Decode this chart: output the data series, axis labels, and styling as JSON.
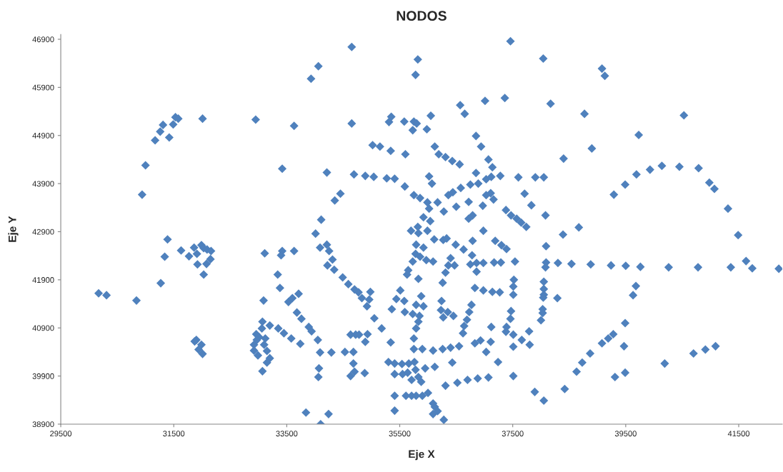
{
  "chart_data": {
    "type": "scatter",
    "title": "NODOS",
    "xlabel": "Eje X",
    "ylabel": "Eje Y",
    "xlim": [
      29500,
      42270
    ],
    "ylim": [
      38900,
      47000
    ],
    "xticks": [
      29500,
      31500,
      33500,
      35500,
      37500,
      39500,
      41500
    ],
    "yticks": [
      38900,
      39900,
      40900,
      41900,
      42900,
      43900,
      44900,
      45900,
      46900
    ],
    "grid": false,
    "marker": "diamond",
    "series": [
      {
        "color": "#4f81bd",
        "x": [
          30940,
          31000,
          31170,
          31260,
          31310,
          31420,
          31490,
          31530,
          31580,
          32010,
          32950,
          33630,
          33420,
          31390,
          31340,
          31630,
          31860,
          31770,
          31910,
          31990,
          32030,
          32090,
          32160,
          32150,
          31920,
          32080,
          32030,
          31270,
          30170,
          30310,
          30840,
          31900,
          31870,
          31990,
          31940,
          32010,
          33110,
          33420,
          33400,
          33630,
          33340,
          33380,
          33090,
          33530,
          33600,
          33710,
          33680,
          33760,
          33070,
          33200,
          33350,
          33450,
          33580,
          33740,
          33060,
          32960,
          33010,
          33120,
          32970,
          32920,
          33100,
          33150,
          32920,
          32990,
          33200,
          33150,
          33070,
          34650,
          34060,
          33930,
          35820,
          35780,
          37460,
          38040,
          34650,
          36570,
          36650,
          37010,
          37360,
          35350,
          35310,
          35580,
          35750,
          35800,
          35730,
          36050,
          35980,
          36850,
          36940,
          35020,
          35150,
          35340,
          35600,
          36120,
          36190,
          36310,
          36430,
          36560,
          37070,
          37140,
          34210,
          34690,
          34890,
          35040,
          35270,
          35410,
          36020,
          36070,
          35590,
          36850,
          36750,
          36890,
          36580,
          36440,
          36360,
          36170,
          36280,
          36500,
          36720,
          36790,
          36720,
          36970,
          37030,
          37110,
          37160,
          37030,
          37120,
          37280,
          37600,
          37900,
          37710,
          37830,
          37380,
          37470,
          37570,
          37650,
          37740,
          36980,
          34450,
          34350,
          34110,
          34010,
          35750,
          35860,
          35990,
          36020,
          35920,
          36040,
          35820,
          35700,
          35990,
          39080,
          39130,
          38170,
          38770,
          40530,
          39730,
          38900,
          38400,
          38050,
          39290,
          39490,
          39690,
          39930,
          40140,
          40450,
          40790,
          40980,
          41070,
          41310,
          41490,
          38080,
          38670,
          38390,
          38090,
          38090,
          38080,
          38300,
          38540,
          38880,
          39240,
          39500,
          39760,
          40260,
          40780,
          41360,
          41630,
          41740,
          42210,
          38050,
          38050,
          38050,
          38040,
          38290,
          39680,
          39630,
          38030,
          38030,
          38000,
          39490,
          39280,
          39190,
          39080,
          39470,
          38870,
          38730,
          38630,
          38420,
          38050,
          39310,
          39490,
          40190,
          40700,
          40910,
          41090,
          34090,
          34210,
          34250,
          34310,
          34220,
          34340,
          34490,
          34590,
          34700,
          34770,
          34830,
          34980,
          34960,
          34920,
          35050,
          35180,
          33890,
          33940,
          34050,
          34090,
          34290,
          34070,
          34060,
          33840,
          34240,
          34100,
          34630,
          34720,
          34780,
          34930,
          34890,
          34530,
          34680,
          34680,
          34700,
          34630,
          34880,
          35340,
          35300,
          35410,
          35540,
          35660,
          35760,
          35780,
          35410,
          35550,
          35640,
          35710,
          35830,
          35880,
          35950,
          36120,
          35410,
          35610,
          35710,
          35790,
          35900,
          36000,
          35410,
          36090,
          36120,
          36170,
          36090,
          36280,
          36430,
          36310,
          36520,
          36700,
          36880,
          37070,
          37510,
          37890,
          35750,
          35900,
          36090,
          36260,
          36400,
          36550,
          37030,
          37240,
          37510,
          36830,
          36930,
          37110,
          37660,
          37800,
          37510,
          37380,
          37390,
          37790,
          37120,
          36620,
          36640,
          36690,
          36730,
          36770,
          37470,
          37460,
          37510,
          37510,
          37520,
          37540,
          37290,
          37170,
          36980,
          36860,
          36750,
          36860,
          36470,
          36360,
          36310,
          36260,
          36400,
          36780,
          36630,
          36490,
          36790,
          37190,
          37300,
          37390,
          36830,
          36980,
          37140,
          37270,
          36270,
          36330,
          36110,
          35920,
          35790,
          35830,
          35780,
          35860,
          35970,
          36090,
          35730,
          35650,
          35630,
          35830,
          35510,
          35440,
          35580,
          35360,
          35590,
          35730,
          35880,
          35790,
          35920,
          35850,
          35830,
          35790,
          35750,
          36240,
          36230,
          36350,
          36270,
          36450
        ],
        "values": [
          43670,
          44280,
          44800,
          44980,
          45120,
          44860,
          45130,
          45280,
          45250,
          45250,
          45230,
          45100,
          44210,
          42740,
          42380,
          42510,
          42570,
          42390,
          42440,
          42620,
          42560,
          42530,
          42500,
          42330,
          42220,
          42230,
          42010,
          41830,
          41620,
          41580,
          41470,
          40650,
          40620,
          40550,
          40450,
          40360,
          42450,
          42500,
          42410,
          42500,
          42010,
          41730,
          41470,
          41440,
          41520,
          41610,
          41220,
          41090,
          41030,
          40950,
          40890,
          40790,
          40680,
          40570,
          40890,
          40770,
          40710,
          40680,
          40650,
          40550,
          40550,
          40420,
          40430,
          40330,
          40270,
          40180,
          40000,
          46740,
          46340,
          46080,
          46480,
          46160,
          46860,
          46500,
          45150,
          45530,
          45350,
          45620,
          45680,
          45290,
          45180,
          45190,
          45190,
          45150,
          45010,
          45310,
          45030,
          44890,
          44670,
          44700,
          44670,
          44580,
          44510,
          44670,
          44510,
          44450,
          44370,
          44300,
          44400,
          44240,
          44130,
          44090,
          44060,
          44040,
          44010,
          44000,
          44050,
          43900,
          43840,
          44120,
          43880,
          43900,
          43810,
          43720,
          43660,
          43510,
          43320,
          43420,
          43520,
          43240,
          43170,
          43440,
          43660,
          43700,
          43570,
          43990,
          44040,
          44060,
          44030,
          44030,
          43690,
          43450,
          43350,
          43240,
          43170,
          43090,
          43000,
          42920,
          43690,
          43550,
          43150,
          42860,
          43660,
          43600,
          43510,
          43380,
          43200,
          43120,
          43000,
          42920,
          42920,
          46290,
          46140,
          45560,
          45350,
          45320,
          44910,
          44630,
          44420,
          44030,
          43670,
          43880,
          44090,
          44190,
          44270,
          44250,
          44220,
          43920,
          43790,
          43380,
          42830,
          43240,
          42990,
          42840,
          42600,
          42260,
          42160,
          42250,
          42230,
          42220,
          42200,
          42190,
          42170,
          42160,
          42160,
          42160,
          42290,
          42140,
          42130,
          41860,
          41710,
          41590,
          41530,
          41520,
          41770,
          41580,
          41290,
          41210,
          41060,
          41000,
          40770,
          40680,
          40580,
          40520,
          40370,
          40180,
          39990,
          39630,
          39390,
          39880,
          39970,
          40160,
          40370,
          40450,
          40520,
          42570,
          42630,
          42500,
          42320,
          42200,
          42110,
          41950,
          41810,
          41700,
          41640,
          41520,
          41650,
          41490,
          41350,
          41100,
          40890,
          40920,
          40830,
          40650,
          40390,
          40390,
          40060,
          39880,
          39140,
          39110,
          38900,
          40760,
          40760,
          40760,
          40770,
          40610,
          40400,
          40400,
          40160,
          39990,
          39900,
          39960,
          40600,
          40190,
          40160,
          40150,
          40160,
          40190,
          40030,
          39940,
          39940,
          39970,
          39820,
          39880,
          39780,
          40060,
          40090,
          39490,
          39490,
          39490,
          39490,
          39490,
          39550,
          39180,
          39330,
          39260,
          39170,
          39110,
          38990,
          40180,
          39700,
          39760,
          39820,
          39850,
          39870,
          39900,
          39570,
          40460,
          40460,
          40430,
          40460,
          40490,
          40520,
          40400,
          40190,
          40510,
          40580,
          40640,
          40610,
          40650,
          40550,
          40760,
          40820,
          40920,
          40830,
          40920,
          40790,
          40940,
          41070,
          41230,
          41380,
          41250,
          41090,
          41590,
          41760,
          41900,
          42280,
          42260,
          42260,
          42250,
          42250,
          42220,
          42070,
          42200,
          42200,
          42050,
          41840,
          42350,
          42410,
          42530,
          42630,
          42710,
          42710,
          42620,
          42540,
          41730,
          41680,
          41650,
          41640,
          42730,
          42760,
          42740,
          42570,
          42630,
          42870,
          42440,
          42380,
          42310,
          42280,
          42280,
          42100,
          42010,
          41920,
          41680,
          41500,
          41460,
          41290,
          41230,
          41190,
          41560,
          41380,
          41350,
          41150,
          41030,
          40890,
          40680,
          41460,
          41270,
          41230,
          41120,
          41150
        ]
      }
    ]
  }
}
